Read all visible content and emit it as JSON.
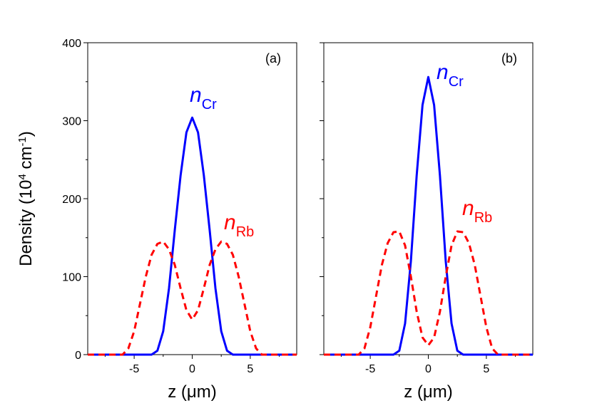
{
  "chart_data": [
    {
      "type": "line",
      "xlabel": "z (μm)",
      "ylabel": [
        {
          "text": "Density (10"
        },
        {
          "text": "4",
          "sup": true
        },
        {
          "text": " cm"
        },
        {
          "text": "-1",
          "sup": true
        },
        {
          "text": ")"
        }
      ],
      "xlim": [
        -9,
        9
      ],
      "ylim": [
        0,
        400
      ],
      "xticks": [
        -5,
        0,
        5
      ],
      "xminor": [
        -7.5,
        -2.5,
        2.5,
        7.5
      ],
      "yticks": [
        0,
        100,
        200,
        300,
        400
      ],
      "yminor": [
        50,
        150,
        250,
        350
      ],
      "show_ytick_labels": true,
      "x": [
        -9,
        -8.5,
        -8,
        -7.5,
        -7,
        -6.5,
        -6,
        -5.5,
        -5,
        -4.5,
        -4,
        -3.5,
        -3,
        -2.5,
        -2,
        -1.5,
        -1,
        -0.5,
        0,
        0.5,
        1,
        1.5,
        2,
        2.5,
        3,
        3.5,
        4,
        4.5,
        5,
        5.5,
        6,
        6.5,
        7,
        7.5,
        8,
        8.5,
        9
      ],
      "series": [
        {
          "name": "n_Cr",
          "color": "#0000ff",
          "dashed": false,
          "values": [
            0,
            0,
            0,
            0,
            0,
            0,
            0,
            0,
            0,
            0,
            0,
            0,
            5,
            30,
            85,
            160,
            230,
            285,
            304,
            285,
            230,
            160,
            85,
            30,
            5,
            0,
            0,
            0,
            0,
            0,
            0,
            0,
            0,
            0,
            0,
            0,
            0
          ]
        },
        {
          "name": "n_Rb",
          "color": "#ff0000",
          "dashed": true,
          "values": [
            0,
            0,
            0,
            0,
            0,
            0,
            0,
            8,
            30,
            65,
            100,
            128,
            142,
            145,
            135,
            115,
            85,
            57,
            45,
            57,
            85,
            115,
            135,
            145,
            142,
            128,
            100,
            65,
            30,
            8,
            0,
            0,
            0,
            0,
            0,
            0,
            0
          ]
        }
      ],
      "annotations": [
        {
          "text": "(a)"
        },
        {
          "text": "n",
          "sub": "Cr",
          "color": "#0000ff"
        },
        {
          "text": "n",
          "sub": "Rb",
          "color": "#ff0000"
        }
      ]
    },
    {
      "type": "line",
      "xlabel": "z (μm)",
      "xlim": [
        -9,
        9
      ],
      "ylim": [
        0,
        400
      ],
      "xticks": [
        -5,
        0,
        5
      ],
      "xminor": [
        -7.5,
        -2.5,
        2.5,
        7.5
      ],
      "yticks": [
        0,
        100,
        200,
        300,
        400
      ],
      "yminor": [
        50,
        150,
        250,
        350
      ],
      "show_ytick_labels": false,
      "x": [
        -9,
        -8.5,
        -8,
        -7.5,
        -7,
        -6.5,
        -6,
        -5.5,
        -5,
        -4.5,
        -4,
        -3.5,
        -3,
        -2.5,
        -2,
        -1.5,
        -1,
        -0.5,
        0,
        0.5,
        1,
        1.5,
        2,
        2.5,
        3,
        3.5,
        4,
        4.5,
        5,
        5.5,
        6,
        6.5,
        7,
        7.5,
        8,
        8.5,
        9
      ],
      "series": [
        {
          "name": "n_Cr",
          "color": "#0000ff",
          "dashed": false,
          "values": [
            0,
            0,
            0,
            0,
            0,
            0,
            0,
            0,
            0,
            0,
            0,
            0,
            0,
            5,
            40,
            120,
            230,
            320,
            356,
            320,
            230,
            120,
            40,
            5,
            0,
            0,
            0,
            0,
            0,
            0,
            0,
            0,
            0,
            0,
            0,
            0,
            0
          ]
        },
        {
          "name": "n_Rb",
          "color": "#ff0000",
          "dashed": true,
          "values": [
            0,
            0,
            0,
            0,
            0,
            0,
            0,
            8,
            35,
            75,
            115,
            143,
            157,
            158,
            140,
            100,
            55,
            22,
            12,
            22,
            55,
            100,
            140,
            158,
            157,
            143,
            115,
            75,
            35,
            8,
            0,
            0,
            0,
            0,
            0,
            0,
            0
          ]
        }
      ],
      "annotations": [
        {
          "text": "(b)"
        },
        {
          "text": "n",
          "sub": "Cr",
          "color": "#0000ff"
        },
        {
          "text": "n",
          "sub": "Rb",
          "color": "#ff0000"
        }
      ]
    }
  ]
}
